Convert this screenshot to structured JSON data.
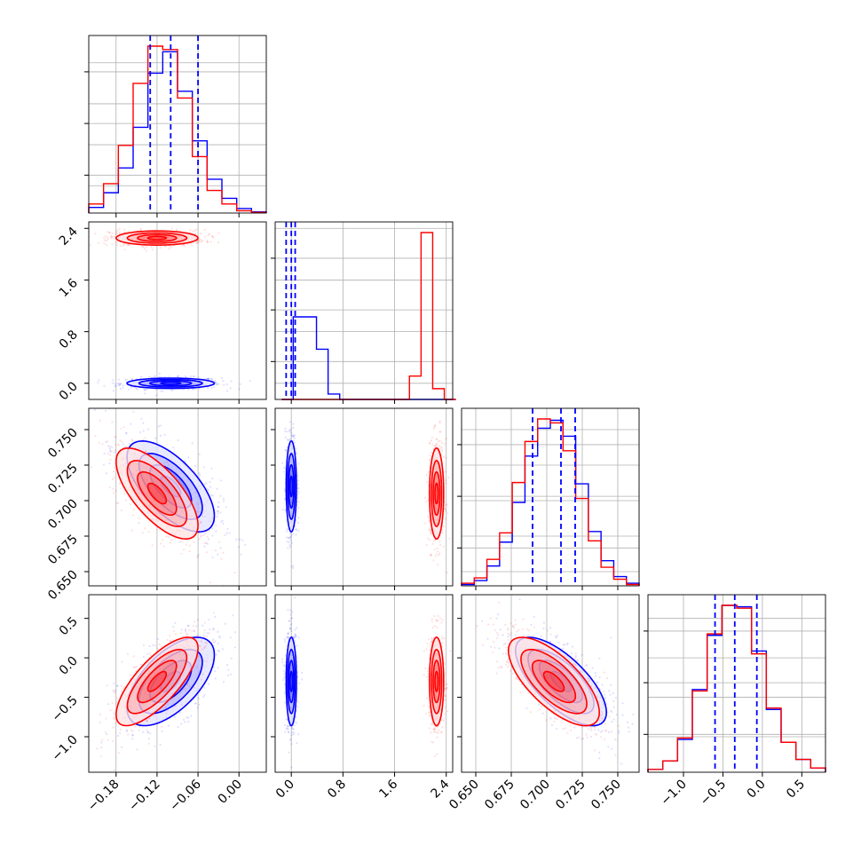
{
  "chart_data": {
    "type": "corner",
    "colors": {
      "blue": "#0000ff",
      "red": "#ff0000"
    },
    "grid": true,
    "series": [
      {
        "color": "blue",
        "quantiles": {
          "p0": [
            -0.13,
            -0.1,
            -0.06
          ],
          "p1": [
            -0.08,
            0.0,
            0.06
          ],
          "p2": [
            0.69,
            0.71,
            0.72
          ],
          "p3": [
            -0.6,
            -0.35,
            -0.07
          ]
        },
        "means": {
          "p0": -0.1,
          "p1": 0.0,
          "p2": 0.71,
          "p3": -0.3
        },
        "sds": {
          "p0": 0.032,
          "p1": 0.04,
          "p2": 0.016,
          "p3": 0.28
        },
        "hist": {
          "p0": [
            0.5,
            1.8,
            4.0,
            7.6,
            12.4,
            14.3,
            10.8,
            6.4,
            3.0,
            1.3,
            0.4,
            0.1
          ],
          "p1": [
            0,
            4.6,
            4.6,
            2.8,
            0.3,
            0,
            0,
            0,
            0,
            0,
            0,
            0,
            0,
            0,
            0
          ],
          "p2": [
            0.1,
            0.4,
            1.5,
            3.3,
            6.3,
            9.8,
            11.9,
            12.5,
            11.3,
            7.7,
            4.1,
            1.9,
            0.7,
            0.2
          ],
          "p3": [
            0.2,
            0.8,
            2.3,
            5.8,
            9.6,
            11.7,
            11.6,
            8.5,
            4.4,
            2.1,
            0.9,
            0.3
          ]
        },
        "corr": {
          "p0-p1": 0.0,
          "p0-p2": -0.65,
          "p0-p3": 0.6,
          "p1-p2": 0.0,
          "p1-p3": 0.0,
          "p2-p3": -0.7
        }
      },
      {
        "color": "red",
        "quantiles": {},
        "means": {
          "p0": -0.12,
          "p1": 2.25,
          "p2": 0.705,
          "p3": -0.3
        },
        "sds": {
          "p0": 0.03,
          "p1": 0.055,
          "p2": 0.016,
          "p3": 0.28
        },
        "hist": {
          "p0": [
            0.8,
            2.6,
            6.0,
            11.5,
            14.8,
            14.5,
            10.2,
            5.0,
            2.0,
            0.8,
            0.2,
            0.05
          ],
          "p1": [
            0,
            0,
            0,
            0,
            0,
            0,
            0,
            0,
            0,
            0,
            0,
            1.3,
            9.3,
            0.6,
            0
          ],
          "p2": [
            0.2,
            0.6,
            2.0,
            4.0,
            7.8,
            10.9,
            12.6,
            12.3,
            10.2,
            6.6,
            3.4,
            1.4,
            0.5,
            0.1
          ],
          "p3": [
            0.2,
            0.8,
            2.4,
            5.7,
            9.7,
            11.7,
            11.5,
            8.3,
            4.5,
            2.1,
            0.9,
            0.3
          ]
        },
        "corr": {
          "p0-p1": 0.0,
          "p0-p2": -0.7,
          "p0-p3": 0.75,
          "p1-p2": 0.0,
          "p1-p3": 0.0,
          "p2-p3": -0.7
        }
      }
    ],
    "params": [
      {
        "range": [
          -0.22,
          0.04
        ],
        "ticks": [
          -0.18,
          -0.12,
          -0.06,
          0.0
        ],
        "tick_labels": [
          "−0.18",
          "−0.12",
          "−0.06",
          "0.00"
        ],
        "hist_range": [
          -0.22,
          0.04
        ]
      },
      {
        "range": [
          -0.25,
          2.5
        ],
        "ticks": [
          0.0,
          0.8,
          1.6,
          2.4
        ],
        "tick_labels": [
          "0.0",
          "0.8",
          "1.6",
          "2.4"
        ],
        "hist_range": [
          -0.15,
          2.55
        ]
      },
      {
        "range": [
          0.64,
          0.765
        ],
        "ticks": [
          0.65,
          0.675,
          0.7,
          0.725,
          0.75
        ],
        "tick_labels": [
          "0.650",
          "0.675",
          "0.700",
          "0.725",
          "0.750"
        ],
        "hist_range": [
          0.64,
          0.765
        ]
      },
      {
        "range": [
          -1.45,
          0.8
        ],
        "ticks": [
          -1.0,
          -0.5,
          0.0,
          0.5
        ],
        "tick_labels": [
          "−1.0",
          "−0.5",
          "0.0",
          "0.5"
        ],
        "hist_range": [
          -1.45,
          0.8
        ]
      }
    ]
  }
}
